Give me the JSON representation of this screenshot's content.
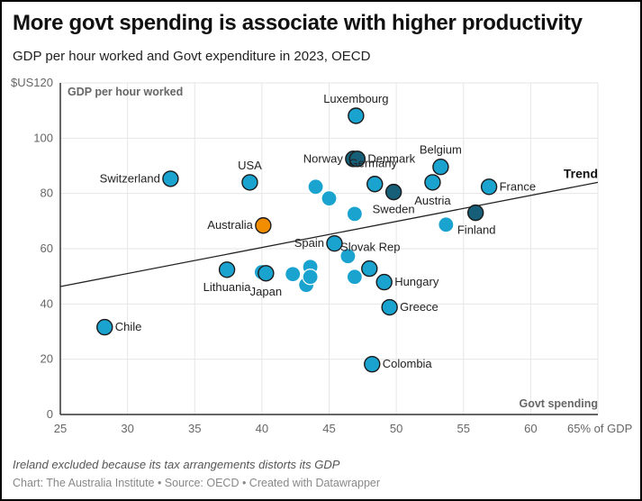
{
  "title": "More govt spending is associate with higher productivity",
  "subtitle": "GDP per hour worked and Govt expenditure in 2023, OECD",
  "note": "Ireland excluded because its tax arrangements distorts its GDP",
  "credit": "Chart: The Australia Institute  • Source: OECD • Created with Datawrapper",
  "chart_data": {
    "type": "scatter",
    "title": "More govt spending is associate with higher productivity",
    "subtitle": "GDP per hour worked and Govt expenditure in 2023, OECD",
    "xlabel": "Govt spending",
    "ylabel": "GDP per hour worked",
    "xlim": [
      25,
      65
    ],
    "ylim": [
      0,
      120
    ],
    "x_ticks": [
      {
        "value": 25,
        "label": "25"
      },
      {
        "value": 30,
        "label": "30"
      },
      {
        "value": 35,
        "label": "35"
      },
      {
        "value": 40,
        "label": "40"
      },
      {
        "value": 45,
        "label": "45"
      },
      {
        "value": 50,
        "label": "50"
      },
      {
        "value": 55,
        "label": "55"
      },
      {
        "value": 60,
        "label": "60"
      },
      {
        "value": 65,
        "label": "65% of GDP"
      }
    ],
    "y_ticks": [
      {
        "value": 0,
        "label": "0"
      },
      {
        "value": 20,
        "label": "20"
      },
      {
        "value": 40,
        "label": "40"
      },
      {
        "value": 60,
        "label": "60"
      },
      {
        "value": 80,
        "label": "80"
      },
      {
        "value": 100,
        "label": "100"
      },
      {
        "value": 120,
        "label": "$US120"
      }
    ],
    "grid": true,
    "colors": {
      "default": "#1ba3d0",
      "highlight": "#f28c00",
      "dark": "#175f78",
      "stroke": "#1a1a1a",
      "grid": "#e6e6e6",
      "trend": "#222222"
    },
    "trend": {
      "label": "Trend",
      "x": [
        25,
        65
      ],
      "y": [
        46.3,
        84.0
      ]
    },
    "points": [
      {
        "name": "Chile",
        "x": 28.3,
        "y": 31.6,
        "color": "default",
        "label": "Chile",
        "label_pos": "right",
        "outlined": true
      },
      {
        "name": "Switzerland",
        "x": 33.2,
        "y": 85.3,
        "color": "default",
        "label": "Switzerland",
        "label_pos": "left",
        "outlined": true
      },
      {
        "name": "USA",
        "x": 39.1,
        "y": 84.0,
        "color": "default",
        "label": "USA",
        "label_pos": "top",
        "outlined": true
      },
      {
        "name": "Australia",
        "x": 40.1,
        "y": 68.4,
        "color": "highlight",
        "label": "Australia",
        "label_pos": "left",
        "outlined": true
      },
      {
        "name": "Lithuania",
        "x": 37.4,
        "y": 52.4,
        "color": "default",
        "label": "Lithuania",
        "label_pos": "bottom",
        "outlined": true
      },
      {
        "name": "Unlabelled 1",
        "x": 40.0,
        "y": 51.5,
        "color": "default",
        "label": "",
        "outlined": false
      },
      {
        "name": "Japan",
        "x": 40.3,
        "y": 51.1,
        "color": "default",
        "label": "Japan",
        "label_pos": "bottom",
        "outlined": true
      },
      {
        "name": "Unlabelled 2",
        "x": 42.3,
        "y": 50.8,
        "color": "default",
        "label": "",
        "outlined": false
      },
      {
        "name": "Unlabelled 3",
        "x": 43.6,
        "y": 53.4,
        "color": "default",
        "label": "",
        "outlined": false
      },
      {
        "name": "Unlabelled 4",
        "x": 43.3,
        "y": 46.9,
        "color": "default",
        "label": "",
        "outlined": false
      },
      {
        "name": "Unlabelled 5",
        "x": 43.6,
        "y": 49.8,
        "color": "default",
        "label": "",
        "outlined": false
      },
      {
        "name": "Unlabelled 6",
        "x": 44.0,
        "y": 82.4,
        "color": "default",
        "label": "",
        "outlined": false
      },
      {
        "name": "Unlabelled 7",
        "x": 45.0,
        "y": 78.2,
        "color": "default",
        "label": "",
        "outlined": false
      },
      {
        "name": "Luxembourg",
        "x": 47.0,
        "y": 108.1,
        "color": "default",
        "label": "Luxembourg",
        "label_pos": "top",
        "outlined": true
      },
      {
        "name": "Norway",
        "x": 46.8,
        "y": 92.5,
        "color": "dark",
        "label": "Norway",
        "label_pos": "left",
        "outlined": true
      },
      {
        "name": "Denmark",
        "x": 47.1,
        "y": 92.5,
        "color": "dark",
        "label": "Denmark",
        "label_pos": "right",
        "outlined": true
      },
      {
        "name": "Germany",
        "x": 48.4,
        "y": 83.4,
        "color": "default",
        "label": "Germany",
        "label_pos": "top-left",
        "outlined": true
      },
      {
        "name": "Sweden",
        "x": 49.8,
        "y": 80.5,
        "color": "dark",
        "label": "Sweden",
        "label_pos": "bottom",
        "outlined": true
      },
      {
        "name": "Unlabelled 8",
        "x": 46.9,
        "y": 72.6,
        "color": "default",
        "label": "",
        "outlined": false
      },
      {
        "name": "Unlabelled 9",
        "x": 46.4,
        "y": 57.3,
        "color": "default",
        "label": "",
        "outlined": false
      },
      {
        "name": "Spain",
        "x": 45.4,
        "y": 61.9,
        "color": "default",
        "label": "Spain",
        "label_pos": "left",
        "outlined": true
      },
      {
        "name": "Slovak Rep",
        "x": 48.0,
        "y": 52.8,
        "color": "default",
        "label": "Slovak Rep",
        "label_pos": "top",
        "outlined": true
      },
      {
        "name": "Unlabelled 10",
        "x": 46.9,
        "y": 49.8,
        "color": "default",
        "label": "",
        "outlined": false
      },
      {
        "name": "Hungary",
        "x": 49.1,
        "y": 47.9,
        "color": "default",
        "label": "Hungary",
        "label_pos": "right",
        "outlined": true
      },
      {
        "name": "Greece",
        "x": 49.5,
        "y": 38.8,
        "color": "default",
        "label": "Greece",
        "label_pos": "right",
        "outlined": true
      },
      {
        "name": "Colombia",
        "x": 48.2,
        "y": 18.2,
        "color": "default",
        "label": "Colombia",
        "label_pos": "right",
        "outlined": true
      },
      {
        "name": "Austria",
        "x": 52.7,
        "y": 84.0,
        "color": "default",
        "label": "Austria",
        "label_pos": "bottom",
        "outlined": true
      },
      {
        "name": "Belgium",
        "x": 53.3,
        "y": 89.6,
        "color": "default",
        "label": "Belgium",
        "label_pos": "top",
        "outlined": true
      },
      {
        "name": "Unlabelled 11",
        "x": 53.7,
        "y": 68.7,
        "color": "default",
        "label": "",
        "outlined": false
      },
      {
        "name": "Finland",
        "x": 55.9,
        "y": 73.0,
        "color": "dark",
        "label": "Finland",
        "label_pos": "bottom",
        "outlined": true
      },
      {
        "name": "France",
        "x": 56.9,
        "y": 82.4,
        "color": "default",
        "label": "France",
        "label_pos": "right",
        "outlined": true
      }
    ]
  }
}
